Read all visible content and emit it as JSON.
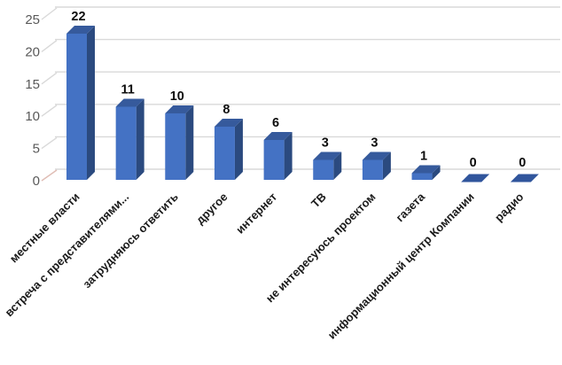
{
  "chart_data": {
    "type": "bar",
    "variant": "3d-column",
    "title": "",
    "xlabel": "",
    "ylabel": "",
    "legend": "none",
    "grid": true,
    "categories": [
      "местные власти",
      "встреча с представителями...",
      "затрудняюсь ответить",
      "другое",
      "интернет",
      "ТВ",
      "не интересуюсь проектом",
      "газета",
      "информационный центр Компании",
      "радио"
    ],
    "values": [
      22,
      11,
      10,
      8,
      6,
      3,
      3,
      1,
      0,
      0
    ],
    "data_labels": [
      "22",
      "11",
      "10",
      "8",
      "6",
      "3",
      "3",
      "1",
      "0",
      "0"
    ],
    "y_ticks": [
      0,
      5,
      10,
      15,
      20,
      25
    ],
    "ylim": [
      0,
      25
    ],
    "colors": {
      "background": "#FFFFFF",
      "bar_front": "#4472C4",
      "bar_top": "#365A9C",
      "bar_side": "#2B4A7F",
      "zero_slab": "#30559C",
      "gridline": "#D9D9D9",
      "tick_line": "#E0BDB5",
      "axis_label": "#595959",
      "value_label": "#0D0D0D",
      "category_label": "#1A1A1A"
    }
  }
}
